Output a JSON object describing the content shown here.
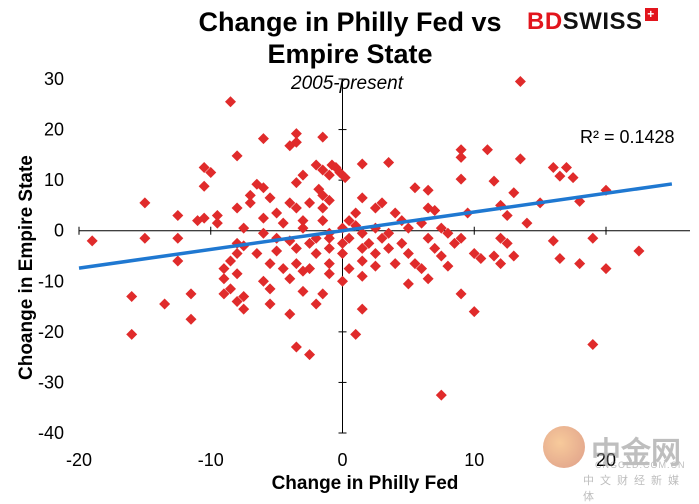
{
  "brand": {
    "part1": "BD",
    "part2": "SWISS",
    "mark": "+"
  },
  "watermark": {
    "cn": "中金网",
    "en": "CNGOLD.COM.CN",
    "cn_sub": "中文财经新媒体"
  },
  "chart_data": {
    "type": "scatter",
    "title_line1": "Change in Philly Fed vs",
    "title_line2": "Empire State",
    "subtitle": "2005-present",
    "xlabel": "Change in Philly  Fed",
    "ylabel": "Choange in Empire State",
    "xlim": [
      -20,
      25
    ],
    "ylim": [
      -40,
      30
    ],
    "xticks": [
      -20,
      -10,
      0,
      10,
      20
    ],
    "yticks": [
      30,
      20,
      10,
      0,
      -10,
      -20,
      -30,
      -40
    ],
    "grid": false,
    "marker_color": "#e02b2b",
    "trend_color": "#1f78d1",
    "trendline": {
      "slope": 0.37,
      "intercept": 0.0,
      "x_start": -20,
      "x_end": 25
    },
    "r_squared_label": "R² = 0.1428",
    "points": [
      [
        13.5,
        29.5
      ],
      [
        -8.5,
        25.5
      ],
      [
        -3.5,
        19.2
      ],
      [
        -1.5,
        18.5
      ],
      [
        -6.0,
        18.2
      ],
      [
        -4.0,
        16.8
      ],
      [
        -3.5,
        17.5
      ],
      [
        9.0,
        16.0
      ],
      [
        11.0,
        16.0
      ],
      [
        9.0,
        14.5
      ],
      [
        13.5,
        14.2
      ],
      [
        -8.0,
        14.8
      ],
      [
        -2.0,
        13.0
      ],
      [
        -0.8,
        13.0
      ],
      [
        1.5,
        13.2
      ],
      [
        3.5,
        13.5
      ],
      [
        -0.5,
        12.5
      ],
      [
        -1.5,
        12.0
      ],
      [
        -0.2,
        11.5
      ],
      [
        -1.0,
        11.0
      ],
      [
        16.0,
        12.5
      ],
      [
        17.0,
        12.5
      ],
      [
        -10.5,
        12.5
      ],
      [
        -10.0,
        11.5
      ],
      [
        -3.0,
        11.0
      ],
      [
        0.2,
        10.5
      ],
      [
        16.5,
        10.8
      ],
      [
        17.5,
        10.5
      ],
      [
        9.0,
        10.2
      ],
      [
        11.5,
        9.8
      ],
      [
        -3.5,
        9.5
      ],
      [
        -6.5,
        9.2
      ],
      [
        -6.0,
        8.5
      ],
      [
        -10.5,
        8.8
      ],
      [
        -1.8,
        8.2
      ],
      [
        5.5,
        8.5
      ],
      [
        6.5,
        8.0
      ],
      [
        -7.0,
        7.0
      ],
      [
        -5.5,
        6.5
      ],
      [
        13.0,
        7.5
      ],
      [
        20.0,
        8.0
      ],
      [
        -1.5,
        7.0
      ],
      [
        1.5,
        6.5
      ],
      [
        -7.0,
        5.5
      ],
      [
        -4.0,
        5.5
      ],
      [
        -2.5,
        5.5
      ],
      [
        -1.0,
        6.0
      ],
      [
        -15.0,
        5.5
      ],
      [
        18.0,
        5.8
      ],
      [
        12.0,
        5.0
      ],
      [
        15.0,
        5.5
      ],
      [
        -8.0,
        4.5
      ],
      [
        -3.5,
        4.5
      ],
      [
        -1.5,
        4.5
      ],
      [
        2.5,
        4.5
      ],
      [
        3.0,
        5.5
      ],
      [
        6.5,
        4.5
      ],
      [
        7.0,
        4.0
      ],
      [
        4.0,
        3.5
      ],
      [
        -9.5,
        3.0
      ],
      [
        -5.0,
        3.5
      ],
      [
        -6.0,
        2.5
      ],
      [
        1.0,
        3.5
      ],
      [
        9.5,
        3.5
      ],
      [
        12.5,
        3.0
      ],
      [
        -10.5,
        2.5
      ],
      [
        -9.5,
        1.5
      ],
      [
        -3.0,
        2.0
      ],
      [
        -1.5,
        2.0
      ],
      [
        0.5,
        2.0
      ],
      [
        -12.5,
        3.0
      ],
      [
        -11.0,
        2.0
      ],
      [
        -4.5,
        1.5
      ],
      [
        1.0,
        1.0
      ],
      [
        4.5,
        2.0
      ],
      [
        6.0,
        1.5
      ],
      [
        14.0,
        1.5
      ],
      [
        -7.5,
        0.5
      ],
      [
        -3.0,
        0.5
      ],
      [
        0.0,
        0.5
      ],
      [
        2.5,
        0.5
      ],
      [
        5.0,
        0.5
      ],
      [
        7.5,
        0.5
      ],
      [
        -6.0,
        -0.5
      ],
      [
        -1.0,
        -0.5
      ],
      [
        1.5,
        -0.5
      ],
      [
        3.5,
        -0.5
      ],
      [
        8.0,
        -0.5
      ],
      [
        -5.0,
        -1.5
      ],
      [
        -2.0,
        -1.5
      ],
      [
        -1.0,
        -1.5
      ],
      [
        0.5,
        -1.5
      ],
      [
        3.0,
        -1.5
      ],
      [
        6.5,
        -1.5
      ],
      [
        9.0,
        -1.5
      ],
      [
        12.0,
        -1.5
      ],
      [
        -8.0,
        -2.5
      ],
      [
        -4.0,
        -2.0
      ],
      [
        -2.5,
        -2.5
      ],
      [
        0.0,
        -2.5
      ],
      [
        2.0,
        -2.5
      ],
      [
        4.5,
        -2.5
      ],
      [
        8.5,
        -2.5
      ],
      [
        12.5,
        -2.5
      ],
      [
        16.0,
        -2.0
      ],
      [
        19.0,
        -1.5
      ],
      [
        -19.0,
        -2.0
      ],
      [
        -15.0,
        -1.5
      ],
      [
        -12.5,
        -1.5
      ],
      [
        -7.5,
        -3.0
      ],
      [
        -3.5,
        -3.5
      ],
      [
        -1.0,
        -3.5
      ],
      [
        1.5,
        -3.5
      ],
      [
        3.5,
        -3.5
      ],
      [
        7.0,
        -3.5
      ],
      [
        10.0,
        -4.5
      ],
      [
        -8.0,
        -4.5
      ],
      [
        -6.5,
        -4.5
      ],
      [
        -5.0,
        -4.0
      ],
      [
        -2.0,
        -4.5
      ],
      [
        0.0,
        -4.5
      ],
      [
        2.5,
        -4.5
      ],
      [
        5.0,
        -4.5
      ],
      [
        7.5,
        -5.0
      ],
      [
        10.5,
        -5.5
      ],
      [
        11.5,
        -5.0
      ],
      [
        13.0,
        -5.0
      ],
      [
        16.5,
        -5.5
      ],
      [
        22.5,
        -4.0
      ],
      [
        -12.5,
        -6.0
      ],
      [
        -8.5,
        -6.0
      ],
      [
        -5.5,
        -6.5
      ],
      [
        -3.5,
        -6.5
      ],
      [
        -1.0,
        -6.5
      ],
      [
        1.5,
        -6.0
      ],
      [
        4.0,
        -6.5
      ],
      [
        5.5,
        -6.5
      ],
      [
        8.0,
        -7.0
      ],
      [
        12.0,
        -6.5
      ],
      [
        18.0,
        -6.5
      ],
      [
        20.0,
        -7.5
      ],
      [
        -9.0,
        -7.5
      ],
      [
        -4.5,
        -7.5
      ],
      [
        -2.5,
        -7.5
      ],
      [
        0.5,
        -7.5
      ],
      [
        2.5,
        -7.0
      ],
      [
        6.0,
        -7.5
      ],
      [
        -8.0,
        -8.5
      ],
      [
        -3.0,
        -8.0
      ],
      [
        -1.0,
        -8.5
      ],
      [
        1.5,
        -9.0
      ],
      [
        6.5,
        -9.5
      ],
      [
        -9.0,
        -9.5
      ],
      [
        -6.0,
        -10.0
      ],
      [
        -4.0,
        -9.5
      ],
      [
        0.0,
        -10.0
      ],
      [
        5.0,
        -10.5
      ],
      [
        -8.5,
        -11.5
      ],
      [
        -5.5,
        -11.5
      ],
      [
        -3.0,
        -12.0
      ],
      [
        -1.5,
        -12.5
      ],
      [
        -7.5,
        -13.0
      ],
      [
        -9.0,
        -12.5
      ],
      [
        9.0,
        -12.5
      ],
      [
        -16.0,
        -13.0
      ],
      [
        -13.5,
        -14.5
      ],
      [
        -11.5,
        -12.5
      ],
      [
        -8.0,
        -14.0
      ],
      [
        -5.5,
        -14.5
      ],
      [
        -2.0,
        -14.5
      ],
      [
        -7.5,
        -15.5
      ],
      [
        10.0,
        -16.0
      ],
      [
        1.5,
        -15.5
      ],
      [
        -4.0,
        -16.5
      ],
      [
        -11.5,
        -17.5
      ],
      [
        -16.0,
        -20.5
      ],
      [
        1.0,
        -20.5
      ],
      [
        -3.5,
        -23.0
      ],
      [
        -2.5,
        -24.5
      ],
      [
        19.0,
        -22.5
      ],
      [
        7.5,
        -32.5
      ]
    ]
  }
}
